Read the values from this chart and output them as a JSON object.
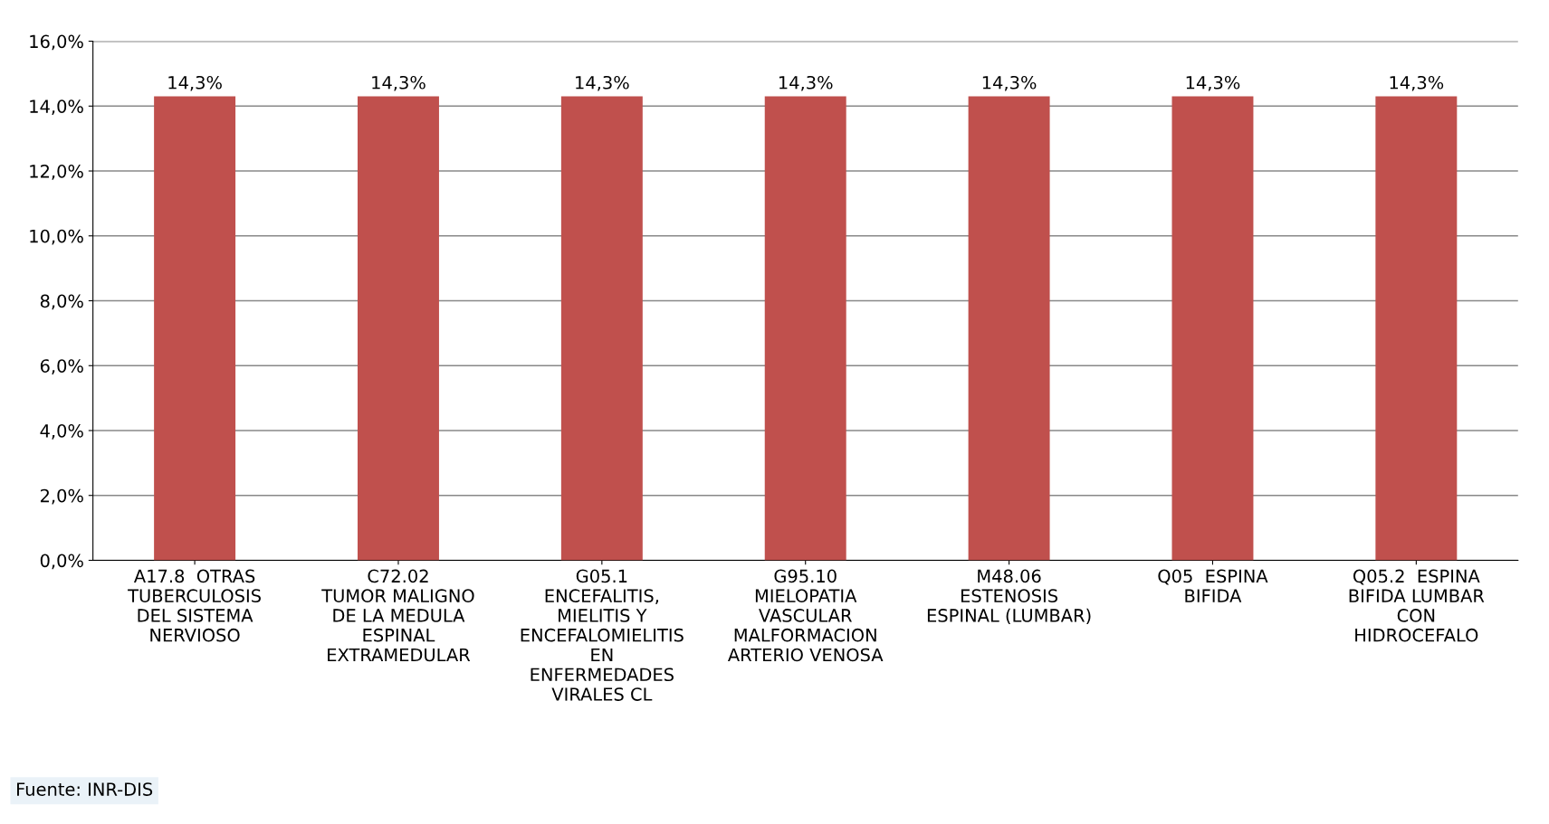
{
  "chart_data": {
    "type": "bar",
    "categories": [
      "A17.8  OTRAS\nTUBERCULOSIS\nDEL SISTEMA\nNERVIOSO",
      "C72.02\nTUMOR MALIGNO\nDE LA MEDULA\nESPINAL\nEXTRAMEDULAR",
      "G05.1\nENCEFALITIS,\nMIELITIS Y\nENCEFALOMIELITIS\nEN\nENFERMEDADES\nVIRALES CL",
      "G95.10\nMIELOPATIA\nVASCULAR\nMALFORMACION\nARTERIO VENOSA",
      "M48.06\nESTENOSIS\nESPINAL (LUMBAR)",
      "Q05  ESPINA\nBIFIDA",
      "Q05.2  ESPINA\nBIFIDA LUMBAR\nCON\nHIDROCEFALO"
    ],
    "values": [
      14.3,
      14.3,
      14.3,
      14.3,
      14.3,
      14.3,
      14.3
    ],
    "value_labels": [
      "14,3%",
      "14,3%",
      "14,3%",
      "14,3%",
      "14,3%",
      "14,3%",
      "14,3%"
    ],
    "color": "#c0504d",
    "ylim": [
      0,
      16
    ],
    "yticks": [
      {
        "value": 0,
        "label": "0,0%"
      },
      {
        "value": 2,
        "label": "2,0%"
      },
      {
        "value": 4,
        "label": "4,0%"
      },
      {
        "value": 6,
        "label": "6,0%"
      },
      {
        "value": 8,
        "label": "8,0%"
      },
      {
        "value": 10,
        "label": "10,0%"
      },
      {
        "value": 12,
        "label": "12,0%"
      },
      {
        "value": 14,
        "label": "14,0%"
      },
      {
        "value": 16,
        "label": "16,0%"
      }
    ],
    "grid": "y",
    "legend": false,
    "annotations": [
      "Fuente: INR-DIS"
    ]
  }
}
